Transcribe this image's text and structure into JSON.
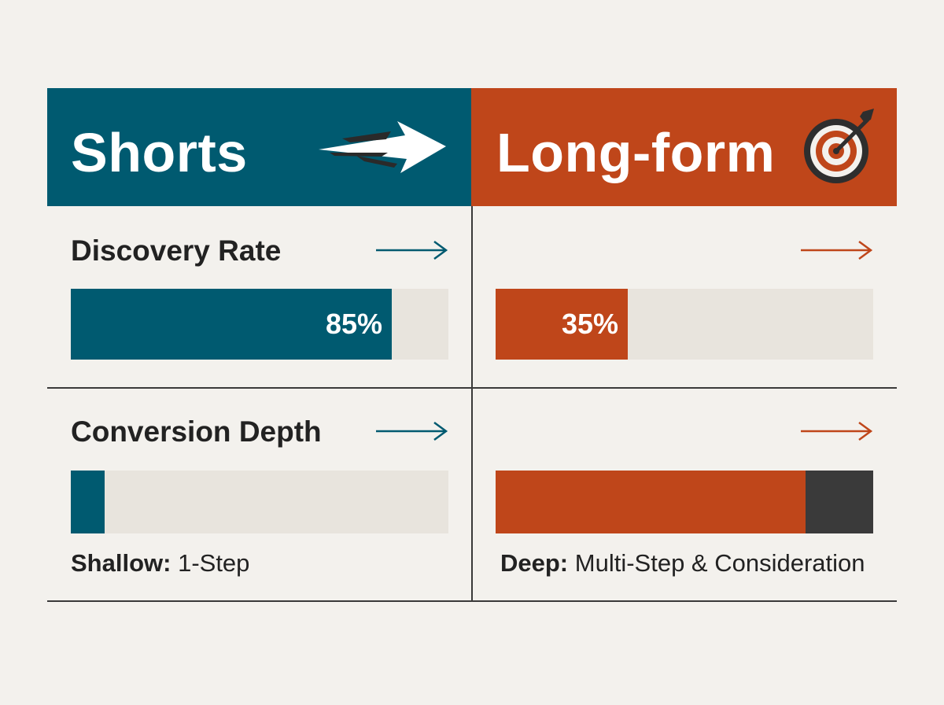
{
  "colors": {
    "shorts": "#005a70",
    "longform": "#bf461a",
    "track": "#e8e4dd",
    "dark": "#3a3a3a",
    "background": "#f3f1ed"
  },
  "columns": [
    {
      "title": "Shorts",
      "icon": "speed-arrow-icon"
    },
    {
      "title": "Long-form",
      "icon": "target-icon"
    }
  ],
  "chart_data": {
    "type": "bar",
    "categories": [
      "Discovery Rate",
      "Conversion Depth"
    ],
    "series": [
      {
        "name": "Shorts",
        "values": [
          85,
          9
        ]
      },
      {
        "name": "Long-form",
        "values": [
          35,
          82
        ]
      }
    ],
    "data_labels": {
      "Shorts": [
        "85%",
        ""
      ],
      "Long-form": [
        "35%",
        ""
      ]
    },
    "depth_dark_segment": {
      "Long-form": 18
    },
    "ylim": [
      0,
      100
    ],
    "grid": false
  },
  "captions": {
    "shorts": {
      "bold": "Shallow:",
      "text": "1-Step"
    },
    "longform": {
      "bold": "Deep:",
      "text": "Multi-Step & Consideration"
    }
  }
}
